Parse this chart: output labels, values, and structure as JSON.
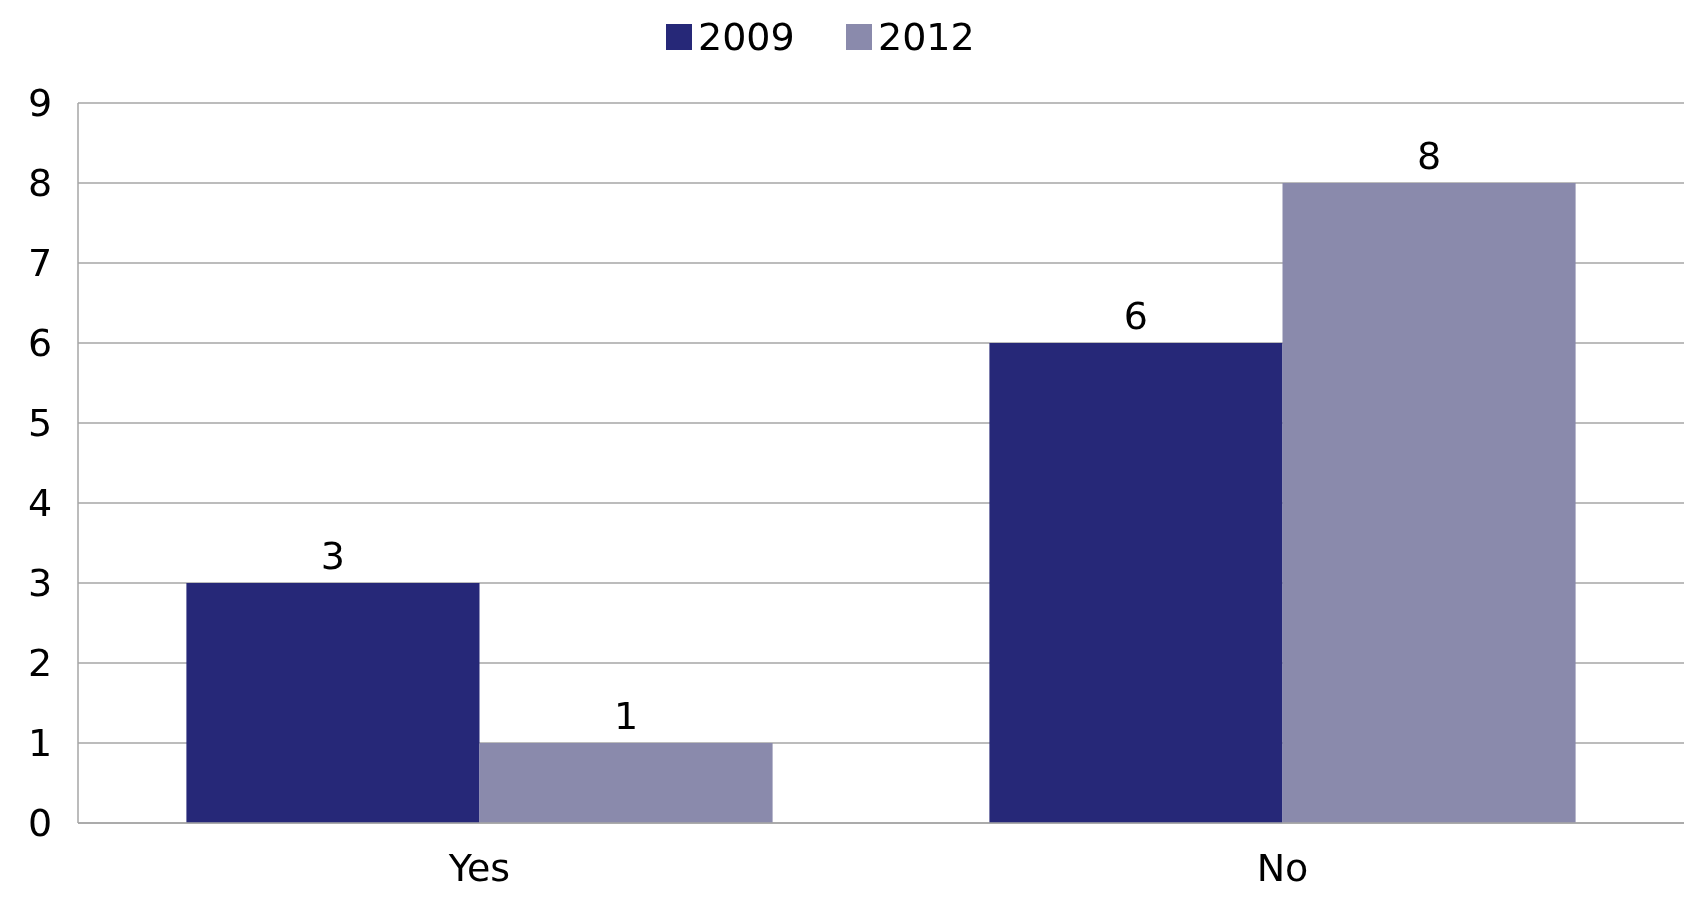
{
  "chart_data": {
    "type": "bar",
    "categories": [
      "Yes",
      "No"
    ],
    "series": [
      {
        "name": "2009",
        "color": "#262878",
        "values": [
          3,
          6
        ]
      },
      {
        "name": "2012",
        "color": "#8a8aac",
        "values": [
          1,
          8
        ]
      }
    ],
    "ylim": [
      0,
      9
    ],
    "yticks": [
      0,
      1,
      2,
      3,
      4,
      5,
      6,
      7,
      8,
      9
    ],
    "grid": "y",
    "legend": "top",
    "data_labels": true
  }
}
